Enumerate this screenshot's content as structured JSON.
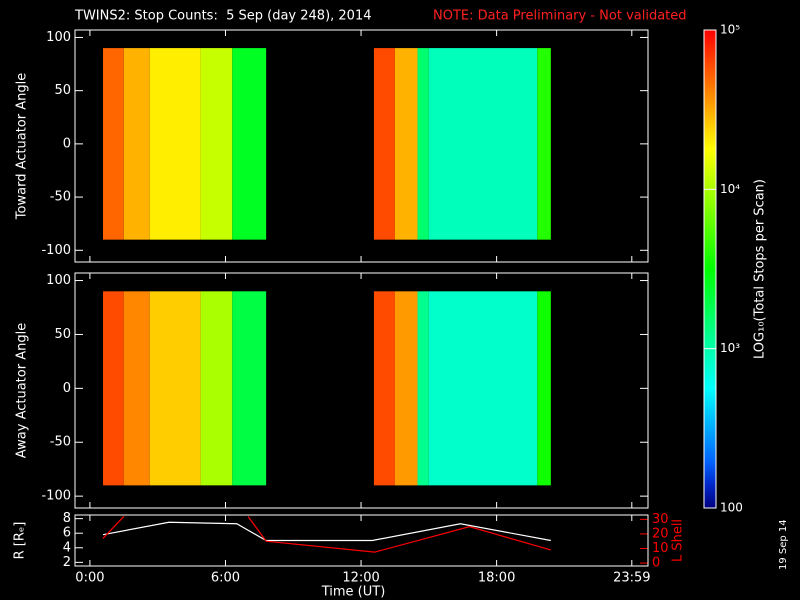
{
  "title": "TWINS2: Stop Counts:  5 Sep (day 248), 2014",
  "note": "NOTE: Data Preliminary - Not validated",
  "date_stamp": "19 Sep 14",
  "colorbar": {
    "label": "LOG₁₀(Total Stops per Scan)",
    "clim": [
      100,
      100000
    ],
    "log": true,
    "ticks": [
      {
        "value": 100000,
        "label": "10⁵"
      },
      {
        "value": 10000,
        "label": "10⁴"
      },
      {
        "value": 1000,
        "label": "10³"
      },
      100
    ]
  },
  "chart_data": [
    {
      "type": "heatmap",
      "ylabel": "Toward Actuator Angle",
      "xlim": [
        -0.66,
        24.7
      ],
      "xticks": [
        0,
        6,
        12,
        18,
        23.983
      ],
      "ylim": [
        -111,
        107
      ],
      "yticks": [
        100,
        50,
        0,
        -50,
        -100
      ],
      "angles": [
        -90,
        90
      ],
      "time_edges": [
        0.58,
        1.5,
        2.65,
        4.9,
        6.3,
        7.8,
        12.57,
        13.5,
        14.5,
        15.0,
        19.8,
        20.4
      ],
      "counts": [
        50000,
        30000,
        20000,
        12000,
        2500,
        null,
        60000,
        30000,
        1500,
        900,
        4000
      ]
    },
    {
      "type": "heatmap",
      "ylabel": "Away Actuator Angle",
      "xlim": [
        -0.66,
        24.7
      ],
      "xticks": [
        0,
        6,
        12,
        18,
        23.983
      ],
      "ylim": [
        -111,
        107
      ],
      "yticks": [
        100,
        50,
        0,
        -50,
        -100
      ],
      "angles": [
        -90,
        90
      ],
      "time_edges": [
        0.58,
        1.5,
        2.65,
        4.9,
        6.3,
        7.8,
        12.57,
        13.5,
        14.5,
        15.0,
        19.8,
        20.4
      ],
      "counts": [
        60000,
        40000,
        25000,
        10000,
        2000,
        null,
        60000,
        35000,
        1200,
        800,
        3500
      ]
    },
    {
      "type": "line",
      "xlabel": "Time (UT)",
      "ylabel": "R [Rₑ]",
      "y2label": "L Shell",
      "xlim": [
        -0.66,
        24.7
      ],
      "xticks": [
        {
          "value": 0,
          "label": "0:00"
        },
        {
          "value": 6,
          "label": "6:00"
        },
        {
          "value": 12,
          "label": "12:00"
        },
        {
          "value": 18,
          "label": "18:00"
        },
        {
          "value": 23.983,
          "label": "23:59"
        }
      ],
      "ylim": [
        1.5,
        8.5
      ],
      "yticks": [
        2,
        4,
        6,
        8
      ],
      "y2lim": [
        -2,
        33
      ],
      "y2ticks": [
        0,
        10,
        20,
        30
      ],
      "series": [
        {
          "name": "R",
          "color": "#ffffff",
          "x": [
            0.58,
            3.5,
            6.5,
            7.8,
            12.5,
            16.4,
            20.4
          ],
          "values": [
            5.8,
            7.5,
            7.3,
            5.0,
            5.0,
            7.3,
            5.0
          ]
        },
        {
          "name": "L",
          "color": "#ff0000",
          "axis": "y2",
          "x": [
            0.58,
            1.5,
            4.0,
            7.0,
            7.8,
            12.6,
            16.8,
            20.4
          ],
          "values": [
            17,
            32,
            null,
            32,
            15,
            7.5,
            25,
            9
          ]
        }
      ]
    }
  ]
}
